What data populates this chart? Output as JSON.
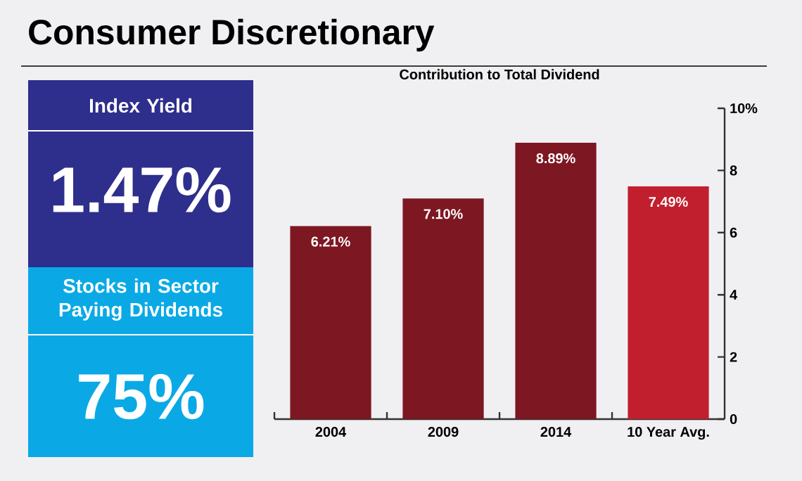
{
  "chart_data": [
    {
      "type": "other",
      "title": "Consumer Discretionary",
      "annotations": [
        "Index Yield",
        "1.47%",
        "Stocks in Sector Paying Dividends",
        "75%"
      ]
    },
    {
      "type": "bar",
      "title": "Contribution to Total Dividend",
      "categories": [
        "2004",
        "2009",
        "2014",
        "10 Year Avg."
      ],
      "values": [
        6.21,
        7.1,
        8.89,
        7.49
      ],
      "colors": [
        "#7d1722",
        "#7d1722",
        "#7d1722",
        "#c21f2e"
      ],
      "value_labels": [
        "6.21%",
        "7.10%",
        "8.89%",
        "7.49%"
      ],
      "ylim": [
        0,
        10
      ],
      "yticks": [
        0,
        2,
        4,
        6,
        8,
        {
          "value": 10,
          "label": "10%"
        }
      ]
    }
  ]
}
